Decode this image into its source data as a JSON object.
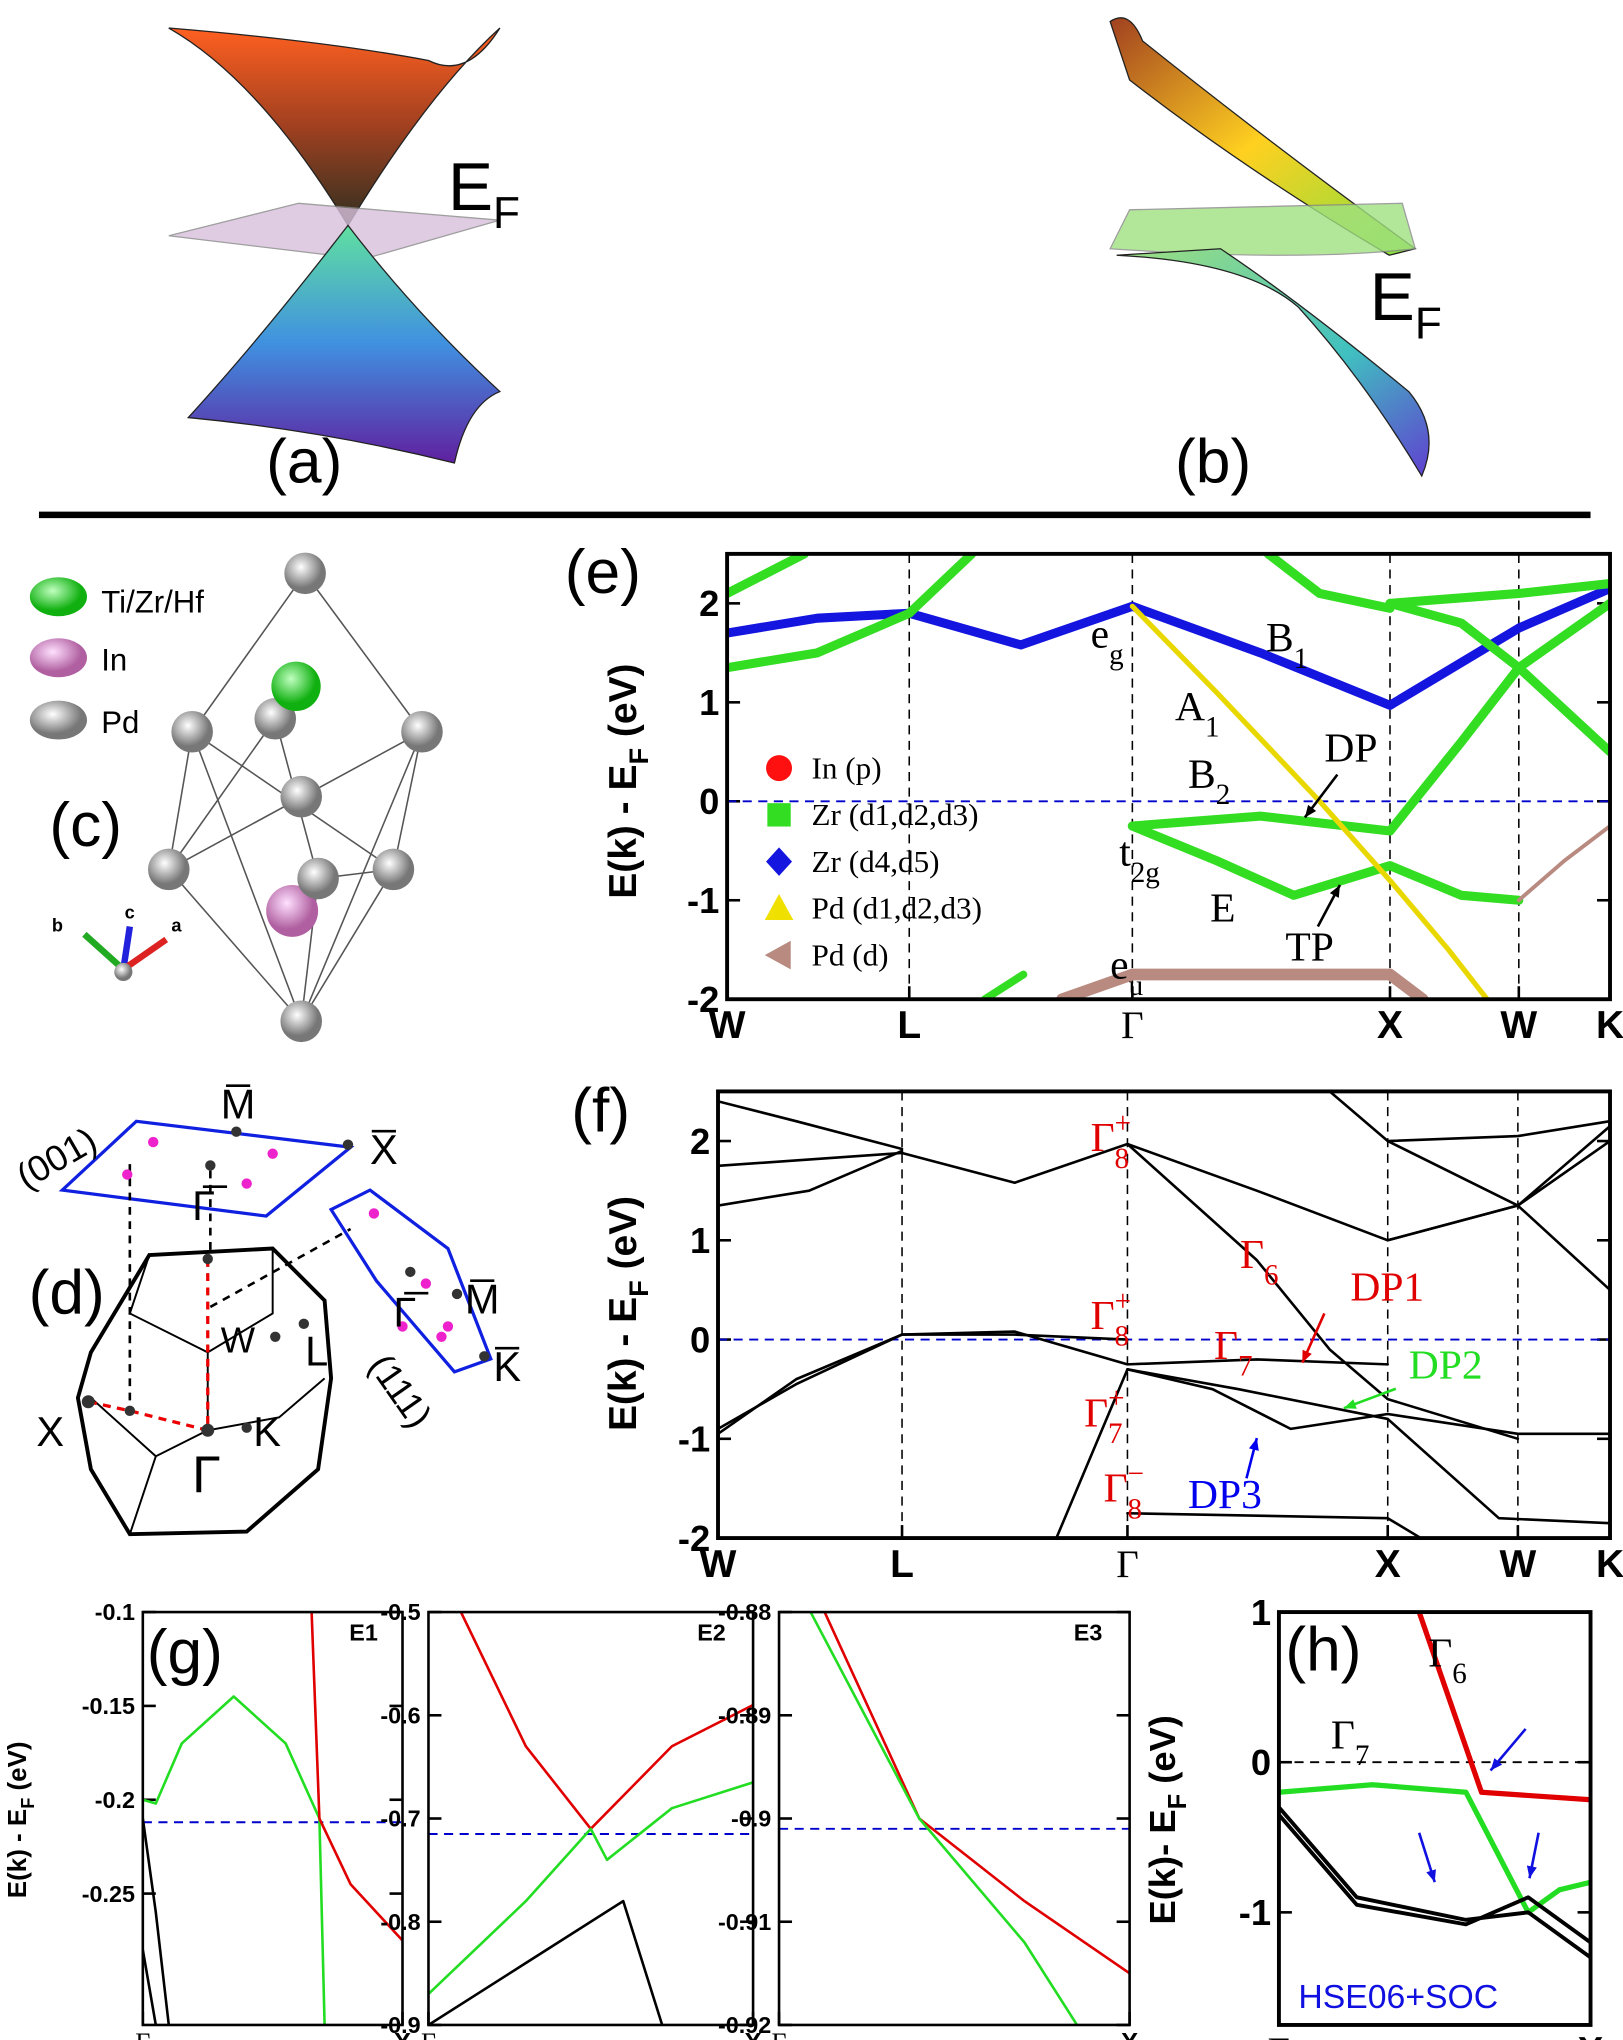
{
  "panels": {
    "a": {
      "label": "(a)",
      "ef": {
        "main": "E",
        "sub": "F"
      }
    },
    "b": {
      "label": "(b)",
      "ef": {
        "main": "E",
        "sub": "F"
      }
    },
    "c": {
      "label": "(c)",
      "legend": [
        "Ti/Zr/Hf",
        "In",
        "Pd"
      ],
      "axes": [
        "b",
        "c",
        "a"
      ]
    },
    "d": {
      "label": "(d)",
      "plane001": "(001)",
      "plane111": "(111)",
      "labels001": [
        "M̅",
        "X̅",
        "Γ̅"
      ],
      "labels111": [
        "Γ̅",
        "M̅",
        "K̅"
      ],
      "bz": [
        "W",
        "L",
        "X",
        "K",
        "Γ"
      ]
    }
  },
  "chart_data": [
    {
      "type": "line",
      "panel": "(e)",
      "ylabel": {
        "main": "E(k) - E",
        "sub": "F",
        "tail": " (eV)"
      },
      "xlim": [
        0,
        3.427
      ],
      "ylim": [
        -2,
        2.5
      ],
      "yticks": [
        -2,
        -1,
        0,
        1,
        2
      ],
      "xticks": [
        {
          "value": 0,
          "label": "W"
        },
        {
          "value": 0.707,
          "label": "L"
        },
        {
          "value": 1.573,
          "label": "Γ"
        },
        {
          "value": 2.573,
          "label": "X"
        },
        {
          "value": 3.073,
          "label": "W"
        },
        {
          "value": 3.427,
          "label": "K"
        }
      ],
      "xgrid": true,
      "reference_lines": [
        {
          "value": 0,
          "color": "#0000cc"
        }
      ],
      "series": [
        {
          "color": "#1515e0",
          "width": 7,
          "x": [
            0,
            0.35,
            0.707,
            1.14,
            1.573,
            2.07,
            2.573,
            3.073,
            3.427
          ],
          "values": [
            1.7,
            1.85,
            1.9,
            1.58,
            1.97,
            1.5,
            0.97,
            1.75,
            2.15
          ]
        },
        {
          "color": "#33dd22",
          "width": 7,
          "x": [
            0,
            0.35,
            0.707
          ],
          "values": [
            1.35,
            1.5,
            1.9
          ]
        },
        {
          "color": "#33dd22",
          "width": 7,
          "x": [
            0.707,
            0.95
          ],
          "values": [
            1.9,
            2.5
          ]
        },
        {
          "color": "#33dd22",
          "width": 7,
          "x": [
            0,
            0.15,
            0.3
          ],
          "values": [
            2.1,
            2.3,
            2.5
          ]
        },
        {
          "color": "#33dd22",
          "width": 7,
          "x": [
            1.573,
            2.07,
            2.573,
            2.85,
            3.073,
            3.427
          ],
          "values": [
            -0.25,
            -0.15,
            -0.3,
            0.6,
            1.35,
            2.0
          ]
        },
        {
          "color": "#33dd22",
          "width": 7,
          "x": [
            1.573,
            1.9,
            2.2,
            2.573,
            2.85,
            3.073
          ],
          "values": [
            -0.25,
            -0.6,
            -0.95,
            -0.65,
            -0.95,
            -1.0
          ]
        },
        {
          "color": "#e8d800",
          "width": 4,
          "x": [
            1.573,
            1.9,
            2.3,
            2.573,
            2.8,
            2.95
          ],
          "values": [
            1.97,
            1.1,
            0,
            -0.8,
            -1.5,
            -2
          ]
        },
        {
          "color": "#b88a80",
          "width": 9,
          "x": [
            1.3,
            1.573,
            2.573,
            2.7
          ],
          "values": [
            -2,
            -1.75,
            -1.75,
            -2
          ]
        },
        {
          "color": "#33dd22",
          "width": 7,
          "x": [
            2.573,
            3.073,
            3.427
          ],
          "values": [
            2.0,
            2.1,
            2.2
          ]
        },
        {
          "color": "#33dd22",
          "width": 7,
          "x": [
            2.1,
            2.3,
            2.573
          ],
          "values": [
            2.5,
            2.1,
            1.95
          ]
        },
        {
          "color": "#33dd22",
          "width": 7,
          "x": [
            2.573,
            2.85,
            3.073,
            3.427
          ],
          "values": [
            2.0,
            1.8,
            1.35,
            0.5
          ]
        },
        {
          "color": "#b88a80",
          "width": 3,
          "x": [
            3.073,
            3.25,
            3.427
          ],
          "values": [
            -1,
            -0.6,
            -0.25
          ]
        },
        {
          "color": "#33dd22",
          "width": 6,
          "x": [
            1.0,
            1.15
          ],
          "values": [
            -2,
            -1.75
          ]
        }
      ],
      "legend": [
        {
          "label": "In (p)",
          "color": "#ff1010",
          "marker": "circle"
        },
        {
          "label": "Zr (d1,d2,d3)",
          "color": "#33dd22",
          "marker": "square"
        },
        {
          "label": "Zr (d4,d5)",
          "color": "#1515e0",
          "marker": "diamond"
        },
        {
          "label": "Pd (d1,d2,d3)",
          "color": "#f0e000",
          "marker": "triangle"
        },
        {
          "label": "Pd (d)",
          "color": "#b88a80",
          "marker": "left-triangle"
        }
      ],
      "annotations": [
        {
          "text": "e",
          "sub": "g",
          "color": "#000"
        },
        {
          "text": "B",
          "sub": "1",
          "color": "#000"
        },
        {
          "text": "A",
          "sub": "1",
          "color": "#000"
        },
        {
          "text": "B",
          "sub": "2",
          "color": "#000"
        },
        {
          "text": "DP",
          "color": "#000"
        },
        {
          "text": "t",
          "sub": "2g",
          "color": "#000"
        },
        {
          "text": "E",
          "color": "#000"
        },
        {
          "text": "TP",
          "color": "#000"
        },
        {
          "text": "e",
          "sub": "u",
          "color": "#000"
        }
      ]
    },
    {
      "type": "line",
      "panel": "(f)",
      "ylabel": {
        "main": "E(k) - E",
        "sub": "F",
        "tail": " (eV)"
      },
      "xlim": [
        0,
        3.427
      ],
      "ylim": [
        -2,
        2.5
      ],
      "yticks": [
        -2,
        -1,
        0,
        1,
        2
      ],
      "xticks": [
        {
          "value": 0,
          "label": "W"
        },
        {
          "value": 0.707,
          "label": "L"
        },
        {
          "value": 1.573,
          "label": "Γ"
        },
        {
          "value": 2.573,
          "label": "X"
        },
        {
          "value": 3.073,
          "label": "W"
        },
        {
          "value": 3.427,
          "label": "K"
        }
      ],
      "xgrid": true,
      "reference_lines": [
        {
          "value": 0,
          "color": "#0000cc"
        }
      ],
      "series": [
        {
          "color": "#000",
          "width": 2,
          "x": [
            0,
            0.707,
            1.14,
            1.573,
            2.07,
            2.573,
            3.073,
            3.427
          ],
          "values": [
            1.75,
            1.88,
            1.58,
            1.97,
            1.5,
            1.0,
            1.35,
            2.15
          ]
        },
        {
          "color": "#000",
          "width": 2,
          "x": [
            0,
            0.35,
            0.707
          ],
          "values": [
            1.35,
            1.5,
            1.9
          ]
        },
        {
          "color": "#000",
          "width": 2,
          "x": [
            0,
            0.3,
            0.707
          ],
          "values": [
            2.4,
            2.2,
            1.92
          ]
        },
        {
          "color": "#000",
          "width": 2,
          "x": [
            0,
            0.3,
            0.707,
            1.14,
            1.573,
            2.07,
            2.573
          ],
          "values": [
            -0.95,
            -0.4,
            0.05,
            0.08,
            -0.25,
            -0.2,
            -0.25
          ]
        },
        {
          "color": "#000",
          "width": 2,
          "x": [
            0,
            0.3,
            0.707,
            1.14,
            1.573
          ],
          "values": [
            -0.9,
            -0.45,
            0.05,
            0.05,
            0.0
          ]
        },
        {
          "color": "#000",
          "width": 2,
          "x": [
            1.573,
            2.07,
            2.35,
            2.573,
            3.073
          ],
          "values": [
            1.97,
            0.8,
            -0.1,
            -0.6,
            -1.0
          ]
        },
        {
          "color": "#000",
          "width": 2,
          "x": [
            1.573,
            1.9,
            2.2,
            2.573,
            3.073,
            3.427
          ],
          "values": [
            -0.3,
            -0.5,
            -0.9,
            -0.75,
            -0.95,
            -0.95
          ]
        },
        {
          "color": "#000",
          "width": 2,
          "x": [
            1.3,
            1.573,
            2.0,
            2.573,
            3.0,
            3.427
          ],
          "values": [
            -2,
            -0.3,
            -0.5,
            -0.8,
            -1.8,
            -1.85
          ]
        },
        {
          "color": "#000",
          "width": 2,
          "x": [
            1.573,
            2.573,
            2.7
          ],
          "values": [
            -1.75,
            -1.8,
            -2
          ]
        },
        {
          "color": "#000",
          "width": 2,
          "x": [
            2.35,
            2.573,
            3.073,
            3.427
          ],
          "values": [
            2.5,
            2.0,
            1.35,
            0.5
          ]
        },
        {
          "color": "#000",
          "width": 2,
          "x": [
            2.573,
            3.073,
            3.427
          ],
          "values": [
            1.0,
            1.35,
            2.0
          ]
        },
        {
          "color": "#000",
          "width": 2,
          "x": [
            2.573,
            3.073,
            3.427
          ],
          "values": [
            2.0,
            2.05,
            2.2
          ]
        }
      ],
      "annotations": [
        {
          "text": "Γ",
          "sub": "8",
          "sup": "+",
          "color": "#e00000"
        },
        {
          "text": "Γ",
          "sub": "6",
          "color": "#e00000"
        },
        {
          "text": "DP1",
          "color": "#e00000"
        },
        {
          "text": "Γ",
          "sub": "8",
          "sup": "+",
          "color": "#e00000"
        },
        {
          "text": "Γ",
          "sub": "7",
          "color": "#e00000"
        },
        {
          "text": "DP2",
          "color": "#22dd22"
        },
        {
          "text": "Γ",
          "sub": "7",
          "sup": "+",
          "color": "#e00000"
        },
        {
          "text": "Γ",
          "sub": "8",
          "sup": "−",
          "color": "#e00000"
        },
        {
          "text": "DP3",
          "color": "#0000ee"
        }
      ]
    },
    {
      "type": "line",
      "panel": "(g)",
      "corner": "E1",
      "ylabel": {
        "main": "E(k) - E",
        "sub": "F",
        "tail": " (eV)"
      },
      "xlim": [
        0,
        1
      ],
      "ylim": [
        -0.32,
        -0.1
      ],
      "yticks": [
        -0.25,
        -0.2,
        -0.15,
        -0.1
      ],
      "xticks": [
        {
          "value": 0,
          "label": "Γ"
        },
        {
          "value": 1,
          "label": "X"
        }
      ],
      "reference_lines": [
        {
          "value": -0.212,
          "color": "#0000cc"
        }
      ],
      "series": [
        {
          "color": "#22dd22",
          "width": 2,
          "x": [
            0,
            0.05,
            0.15,
            0.35,
            0.55,
            0.68,
            0.7
          ],
          "values": [
            -0.2,
            -0.202,
            -0.17,
            -0.145,
            -0.17,
            -0.21,
            -0.32
          ]
        },
        {
          "color": "#e00000",
          "width": 2,
          "x": [
            0.65,
            0.68,
            0.8,
            1
          ],
          "values": [
            -0.1,
            -0.21,
            -0.245,
            -0.275
          ]
        },
        {
          "color": "#000",
          "width": 2,
          "x": [
            0,
            0.05,
            0.1
          ],
          "values": [
            -0.21,
            -0.26,
            -0.32
          ]
        },
        {
          "color": "#000",
          "width": 2,
          "x": [
            0,
            0.05
          ],
          "values": [
            -0.28,
            -0.32
          ]
        }
      ]
    },
    {
      "type": "line",
      "corner": "E2",
      "xlim": [
        0,
        1
      ],
      "ylim": [
        -0.9,
        -0.5
      ],
      "yticks": [
        -0.9,
        -0.8,
        -0.7,
        -0.6,
        -0.5
      ],
      "xticks": [
        {
          "value": 0,
          "label": "Γ"
        },
        {
          "value": 1,
          "label": "X"
        }
      ],
      "reference_lines": [
        {
          "value": -0.715,
          "color": "#0000cc"
        }
      ],
      "range_arrow": true,
      "series": [
        {
          "color": "#e00000",
          "width": 2,
          "x": [
            0.1,
            0.3,
            0.5,
            0.75,
            1
          ],
          "values": [
            -0.5,
            -0.63,
            -0.71,
            -0.63,
            -0.59
          ]
        },
        {
          "color": "#22dd22",
          "width": 2,
          "x": [
            0,
            0.3,
            0.5,
            0.55,
            0.75,
            1
          ],
          "values": [
            -0.87,
            -0.78,
            -0.71,
            -0.74,
            -0.69,
            -0.665
          ]
        },
        {
          "color": "#000",
          "width": 2,
          "x": [
            0,
            0.3,
            0.6,
            0.72
          ],
          "values": [
            -0.9,
            -0.84,
            -0.78,
            -0.9
          ]
        }
      ]
    },
    {
      "type": "line",
      "corner": "E3",
      "xlim": [
        0,
        1
      ],
      "ylim": [
        -0.92,
        -0.88
      ],
      "yticks": [
        -0.92,
        -0.91,
        -0.9,
        -0.89,
        -0.88
      ],
      "xticks": [
        {
          "value": 0,
          "label": "Γ"
        },
        {
          "value": 1,
          "label": "X"
        }
      ],
      "reference_lines": [
        {
          "value": -0.901,
          "color": "#0000cc"
        }
      ],
      "range_arrow": true,
      "series": [
        {
          "color": "#e00000",
          "width": 2,
          "x": [
            0.13,
            0.4,
            0.7,
            1
          ],
          "values": [
            -0.88,
            -0.9,
            -0.908,
            -0.915
          ]
        },
        {
          "color": "#22dd22",
          "width": 2,
          "x": [
            0.09,
            0.4,
            0.7,
            0.85
          ],
          "values": [
            -0.88,
            -0.9,
            -0.912,
            -0.92
          ]
        }
      ]
    },
    {
      "type": "line",
      "panel": "(h)",
      "corner": "HSE06+SOC",
      "ylabel": {
        "main": "E(k)- E",
        "sub": "F",
        "tail": " (eV)"
      },
      "xlim": [
        0,
        1
      ],
      "ylim": [
        -1.75,
        1
      ],
      "yticks": [
        -1,
        0,
        1
      ],
      "xticks": [
        {
          "value": 0,
          "label": "Γ"
        },
        {
          "value": 1,
          "label": "X"
        }
      ],
      "reference_lines": [
        {
          "value": 0,
          "color": "#000"
        }
      ],
      "series": [
        {
          "color": "#e00000",
          "width": 4,
          "x": [
            0.45,
            0.6,
            0.65,
            1
          ],
          "values": [
            1,
            0.1,
            -0.2,
            -0.25
          ]
        },
        {
          "color": "#22dd22",
          "width": 4,
          "x": [
            0,
            0.3,
            0.6,
            0.8,
            0.9,
            1
          ],
          "values": [
            -0.2,
            -0.15,
            -0.2,
            -1.0,
            -0.85,
            -0.8
          ]
        },
        {
          "color": "#000",
          "width": 3,
          "x": [
            0,
            0.25,
            0.6,
            0.8,
            1
          ],
          "values": [
            -0.3,
            -0.9,
            -1.05,
            -1.0,
            -1.3
          ]
        },
        {
          "color": "#000",
          "width": 3,
          "x": [
            0,
            0.25,
            0.6,
            0.8,
            1
          ],
          "values": [
            -0.35,
            -0.95,
            -1.08,
            -0.9,
            -1.2
          ]
        }
      ],
      "annotations": [
        {
          "text": "Γ",
          "sub": "6",
          "color": "#000"
        },
        {
          "text": "Γ",
          "sub": "7",
          "color": "#000"
        }
      ]
    }
  ]
}
